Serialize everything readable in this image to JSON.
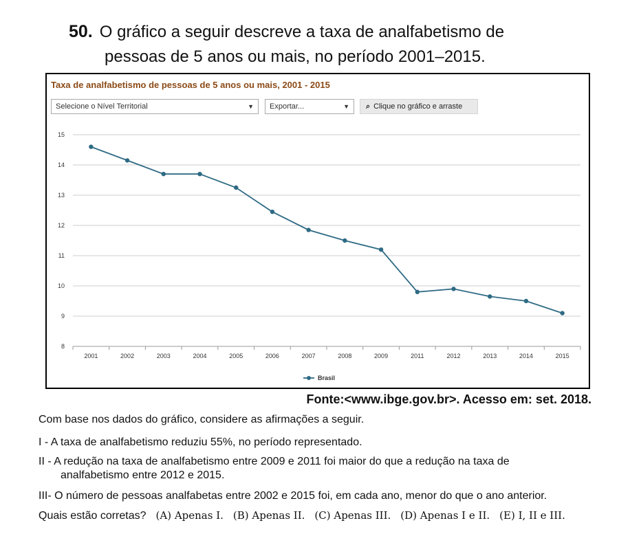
{
  "question": {
    "number": "50.",
    "line1": "O gráfico a seguir descreve a taxa de analfabetismo de",
    "line2": "pessoas de 5 anos ou mais, no período 2001–2015."
  },
  "chart_widget": {
    "header": "Taxa de analfabetismo de pessoas de 5 anos ou mais, 2001 - 2015",
    "region_select": "Selecione o Nível Territorial",
    "export_select": "Exportar...",
    "zoom_hint": "Clique no gráfico e arraste",
    "caret": "▼",
    "zoom_icon": "🔍"
  },
  "chart_data": {
    "type": "line",
    "title": "Taxa de analfabetismo de pessoas de 5 anos ou mais, 2001 - 2015",
    "x": [
      "2001",
      "2002",
      "2003",
      "2004",
      "2005",
      "2006",
      "2007",
      "2008",
      "2009",
      "2011",
      "2012",
      "2013",
      "2014",
      "2015"
    ],
    "series": [
      {
        "name": "Brasil",
        "values": [
          14.6,
          14.15,
          13.7,
          13.7,
          13.25,
          12.45,
          11.85,
          11.5,
          11.2,
          9.8,
          9.9,
          9.65,
          9.5,
          9.1
        ]
      }
    ],
    "ylim": [
      8,
      15
    ],
    "yticks": [
      8,
      9,
      10,
      11,
      12,
      13,
      14,
      15
    ],
    "grid": true,
    "legend": "bottom-center",
    "colors": {
      "series": "#2e6a84",
      "grid": "#cccccc"
    }
  },
  "source": "Fonte:<www.ibge.gov.br>. Acesso em: set. 2018.",
  "statements": {
    "intro": "Com base nos dados do gráfico, considere as afirmações a seguir.",
    "i": "I  - A taxa de analfabetismo reduziu 55%, no período representado.",
    "ii_a": "II - A redução na taxa de analfabetismo entre 2009 e 2011 foi maior do que a redução na taxa de",
    "ii_b": "analfabetismo entre 2012 e 2015.",
    "iii": "III- O número de pessoas analfabetas entre 2002 e 2015 foi, em cada ano, menor do que o ano anterior."
  },
  "answer": {
    "prompt": "Quais estão corretas?",
    "options": [
      "(A) Apenas I.",
      "(B) Apenas II.",
      "(C) Apenas III.",
      "(D) Apenas I e II.",
      "(E) I, II e III."
    ]
  }
}
